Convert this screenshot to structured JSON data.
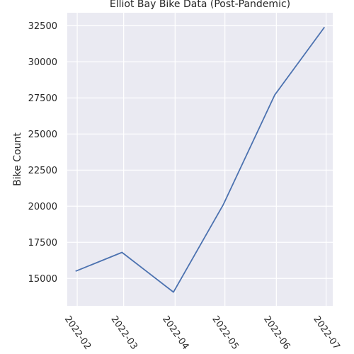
{
  "chart_data": {
    "type": "line",
    "title": "Elliot Bay Bike Data (Post-Pandemic)",
    "xlabel": "",
    "ylabel": "Bike Count",
    "x": [
      "2022-01-31",
      "2022-02-28",
      "2022-03-31",
      "2022-04-30",
      "2022-05-31",
      "2022-06-30"
    ],
    "x_tick_labels": [
      "2022-02",
      "2022-03",
      "2022-04",
      "2022-05",
      "2022-06",
      "2022-07"
    ],
    "series": [
      {
        "values": [
          15500,
          16800,
          14050,
          20100,
          27700,
          32400
        ]
      }
    ],
    "yticks": [
      15000,
      17500,
      20000,
      22500,
      25000,
      27500,
      30000,
      32500
    ],
    "ylim": [
      13100,
      33400
    ],
    "grid": true,
    "colors": {
      "background": "#eaeaf2",
      "grid": "#ffffff",
      "line": "#4c72b0",
      "text": "#262626"
    }
  }
}
